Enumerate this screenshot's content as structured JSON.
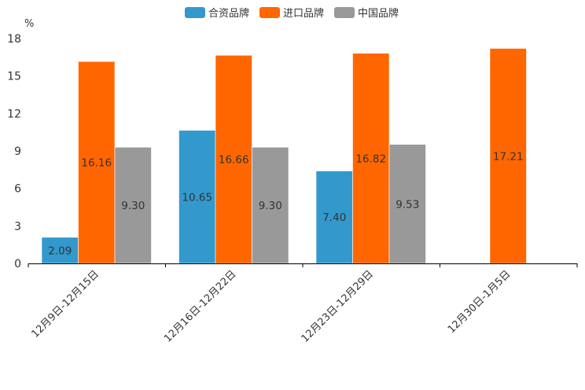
{
  "chart_data": {
    "type": "bar",
    "unit_label": "%",
    "categories": [
      "12月9日-12月15日",
      "12月16日-12月22日",
      "12月23日-12月29日",
      "12月30日-1月5日"
    ],
    "series": [
      {
        "name": "合资品牌",
        "color": "#3399cc",
        "values": [
          2.09,
          10.65,
          7.4,
          null
        ],
        "labels": [
          "2.09",
          "10.65",
          "7.40",
          ""
        ]
      },
      {
        "name": "进口品牌",
        "color": "#ff6600",
        "values": [
          16.16,
          16.66,
          16.82,
          17.21
        ],
        "labels": [
          "16.16",
          "16.66",
          "16.82",
          "17.21"
        ]
      },
      {
        "name": "中国品牌",
        "color": "#999999",
        "values": [
          9.3,
          9.3,
          9.53,
          null
        ],
        "labels": [
          "9.30",
          "9.30",
          "9.53",
          ""
        ]
      }
    ],
    "ylim": [
      0,
      18
    ],
    "yticks": [
      0,
      3,
      6,
      9,
      12,
      15,
      18
    ],
    "ytick_labels": [
      "0",
      "3",
      "6",
      "9",
      "12",
      "15",
      "18"
    ],
    "legend_position": "top-center",
    "grid": false
  }
}
